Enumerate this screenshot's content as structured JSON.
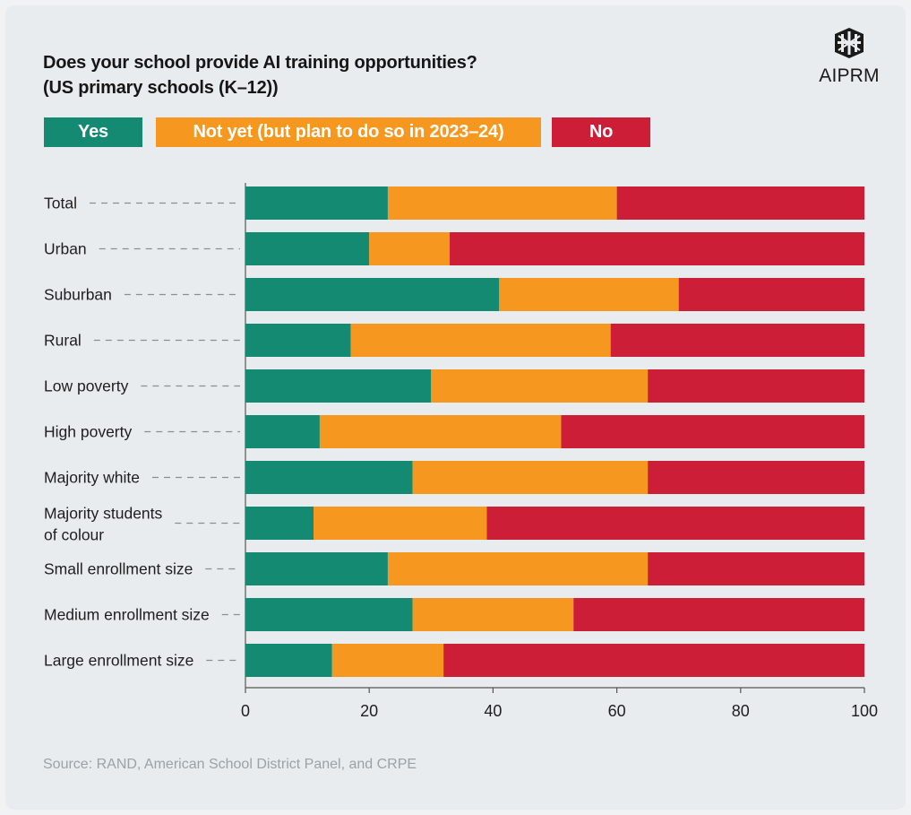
{
  "title_line1": "Does your school provide AI training opportunities?",
  "title_line2": "(US primary schools (K–12))",
  "logo": {
    "text": "AIPRM",
    "icon": "aiprm-logo-icon"
  },
  "source": "Source: RAND, American School District Panel, and CRPE",
  "colors": {
    "yes": "#148a72",
    "not_yet": "#f6981f",
    "no": "#cc1f37"
  },
  "chart_data": {
    "type": "bar",
    "orientation": "horizontal",
    "stacked": true,
    "title": "Does your school provide AI training opportunities? (US primary schools (K–12))",
    "categories": [
      "Total",
      "Urban",
      "Suburban",
      "Rural",
      "Low poverty",
      "High poverty",
      "Majority white",
      "Majority students of colour",
      "Small enrollment size",
      "Medium enrollment size",
      "Large enrollment size"
    ],
    "series": [
      {
        "name": "Yes",
        "values": [
          23,
          20,
          41,
          17,
          30,
          12,
          27,
          11,
          23,
          27,
          14
        ]
      },
      {
        "name": "Not yet (but plan to do so in 2023–24)",
        "values": [
          37,
          13,
          29,
          42,
          35,
          39,
          38,
          28,
          42,
          26,
          18
        ]
      },
      {
        "name": "No",
        "values": [
          40,
          67,
          30,
          41,
          35,
          49,
          35,
          61,
          35,
          47,
          68
        ]
      }
    ],
    "xlim": [
      0,
      100
    ],
    "xticks": [
      0,
      20,
      40,
      60,
      80,
      100
    ],
    "xlabel": "",
    "ylabel": "",
    "grid": false,
    "legend": "top-left"
  }
}
